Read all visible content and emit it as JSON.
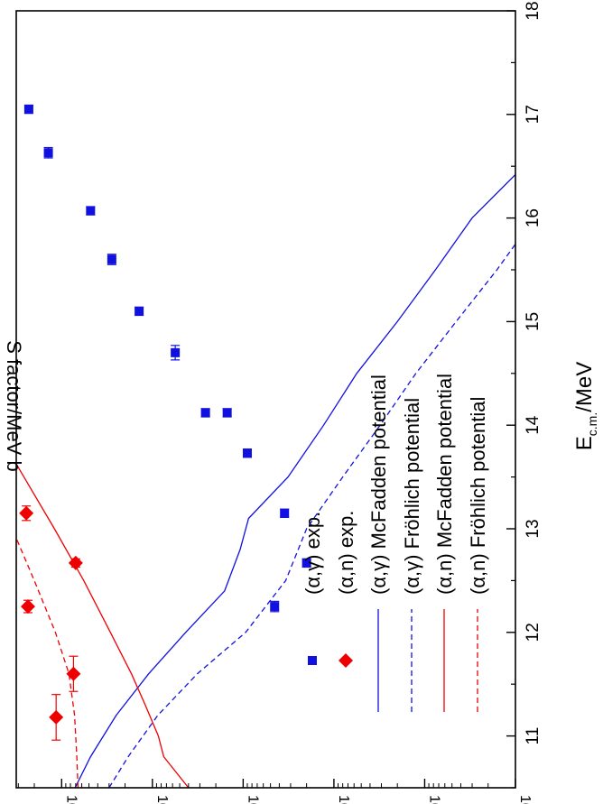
{
  "chart_data": {
    "type": "scatter",
    "orientation": "rotated-90-clockwise",
    "xlabel_main": "E",
    "xlabel_sub": "c.m.",
    "xlabel_unit": "/MeV",
    "ylabel": "S factor/MeV b",
    "xlim": [
      10.5,
      18
    ],
    "ylim_log10": [
      23,
      28.5
    ],
    "y_scale": "log",
    "x_ticks": [
      "11",
      "12",
      "13",
      "14",
      "15",
      "16",
      "17",
      "18"
    ],
    "y_tick_base": "10",
    "y_tick_exponents": [
      "23",
      "24",
      "25",
      "26",
      "27",
      "28"
    ],
    "legend_position": "lower-left",
    "colors": {
      "ag": "#1010e0",
      "an": "#ee0000",
      "axis": "#000000"
    },
    "series": [
      {
        "name": "(α,γ) exp.",
        "marker": "square",
        "color": "#1010e0",
        "points": [
          {
            "x": 12.25,
            "y": 4.5e+25
          },
          {
            "x": 12.67,
            "y": 2e+25
          },
          {
            "x": 13.15,
            "y": 3.5e+25
          },
          {
            "x": 13.73,
            "y": 9e+25
          },
          {
            "x": 14.12,
            "y": 1.5e+26
          },
          {
            "x": 14.12,
            "y": 2.6e+26
          },
          {
            "x": 14.7,
            "y": 5.6e+26
          },
          {
            "x": 15.1,
            "y": 1.4e+27
          },
          {
            "x": 15.6,
            "y": 2.8e+27
          },
          {
            "x": 16.07,
            "y": 4.8e+27
          },
          {
            "x": 16.63,
            "y": 1.4e+28
          },
          {
            "x": 17.05,
            "y": 2.3e+28
          }
        ],
        "xerr": [
          0.05,
          0.04,
          0.04,
          0.04,
          0.04,
          0.04,
          0.07,
          0.04,
          0.05,
          0.04,
          0.05,
          0.04
        ]
      },
      {
        "name": "(α,n) exp.",
        "marker": "diamond",
        "color": "#ee0000",
        "points": [
          {
            "x": 11.18,
            "y": 1.15e+28
          },
          {
            "x": 11.6,
            "y": 7.4e+27
          },
          {
            "x": 12.25,
            "y": 2.35e+28
          },
          {
            "x": 12.67,
            "y": 7e+27
          },
          {
            "x": 13.15,
            "y": 2.45e+28
          },
          {
            "x": 13.73,
            "y": 1.05e+29
          },
          {
            "x": 14.12,
            "y": 2e+29
          },
          {
            "x": 14.12,
            "y": 2.35e+29
          },
          {
            "x": 14.7,
            "y": 3.3e+29
          },
          {
            "x": 15.1,
            "y": 5.7e+29
          },
          {
            "x": 15.6,
            "y": 1.95e+30
          },
          {
            "x": 16.07,
            "y": 1.22e+30
          },
          {
            "x": 16.63,
            "y": 1.28e+30
          },
          {
            "x": 17.05,
            "y": 7.4e+29
          }
        ],
        "xerr": [
          0.22,
          0.17,
          0.06,
          0.04,
          0.07,
          0.05,
          0.05,
          0.07,
          0.05,
          0.05,
          0.06,
          0.05,
          0.04,
          0.05
        ]
      },
      {
        "name": "(α,γ) McFadden potential",
        "style": "solid",
        "color": "#1010e0",
        "x": [
          10.5,
          10.8,
          11.2,
          11.6,
          12.0,
          12.4,
          12.8,
          13.1,
          13.5,
          14.0,
          14.5,
          15.0,
          15.5,
          16.0,
          16.5,
          17.0,
          17.5,
          18.0
        ],
        "y": [
          7.1e+27,
          4.8e+27,
          2.5e+27,
          1.1e+27,
          4.3e+26,
          1.6e+26,
          1.08e+26,
          8.7e+25,
          3.2e+25,
          1.3e+25,
          5.6e+24,
          2e+24,
          7.6e+23,
          3e+23,
          8.1e+22,
          2.2e+22,
          5e+21,
          1.1e+21
        ]
      },
      {
        "name": "(α,γ) Fröhlich potential",
        "style": "dashed",
        "color": "#1010e0",
        "x": [
          10.5,
          10.8,
          11.2,
          11.6,
          12.0,
          12.5,
          13.0,
          13.5,
          14.0,
          14.5,
          15.0,
          15.5,
          16.0,
          16.5,
          17.0,
          17.5,
          18.0
        ],
        "y": [
          3e+27,
          1.85e+27,
          8.7e+26,
          3.2e+26,
          9.4e+25,
          3.4e+25,
          2e+25,
          8e+24,
          3.1e+24,
          1.25e+24,
          4.5e+23,
          1.6e+23,
          6.2e+22,
          2.4e+22,
          8e+21,
          2.5e+21,
          5e+20
        ]
      },
      {
        "name": "(α,n) McFadden potential",
        "style": "solid",
        "color": "#ee0000",
        "x": [
          10.5,
          10.8,
          11.0,
          11.3,
          11.6,
          12.0,
          12.5,
          13.0,
          13.5,
          14.0,
          14.5,
          15.0,
          15.5,
          16.0,
          16.5,
          17.0,
          17.5,
          18.0
        ],
        "y": [
          4e+26,
          7.5e+26,
          8.6e+26,
          1.2e+27,
          1.7e+27,
          2.9e+27,
          5.7e+27,
          1.2e+28,
          2.6e+28,
          5.6e+28,
          1.2e+29,
          2.8e+29,
          6.4e+29,
          1.4e+30,
          3.3e+30,
          8e+30,
          1.9e+31,
          4.3e+31
        ]
      },
      {
        "name": "(α,n) Fröhlich potential",
        "style": "dashed",
        "color": "#ee0000",
        "x": [
          10.5,
          10.8,
          11.2,
          11.6,
          12.0,
          12.5,
          13.0,
          13.5,
          14.0,
          14.5,
          15.0,
          15.5,
          16.0,
          16.5,
          17.0,
          17.5,
          18.0
        ],
        "y": [
          6.6e+27,
          6.8e+27,
          7.2e+27,
          8.3e+27,
          1.17e+28,
          2e+28,
          3.5e+28,
          6.5e+28,
          1.27e+29,
          2.5e+29,
          5e+29,
          1.04e+30,
          2.1e+30,
          4.2e+30,
          8.5e+30,
          1.7e+31,
          3.3e+31
        ]
      }
    ]
  }
}
